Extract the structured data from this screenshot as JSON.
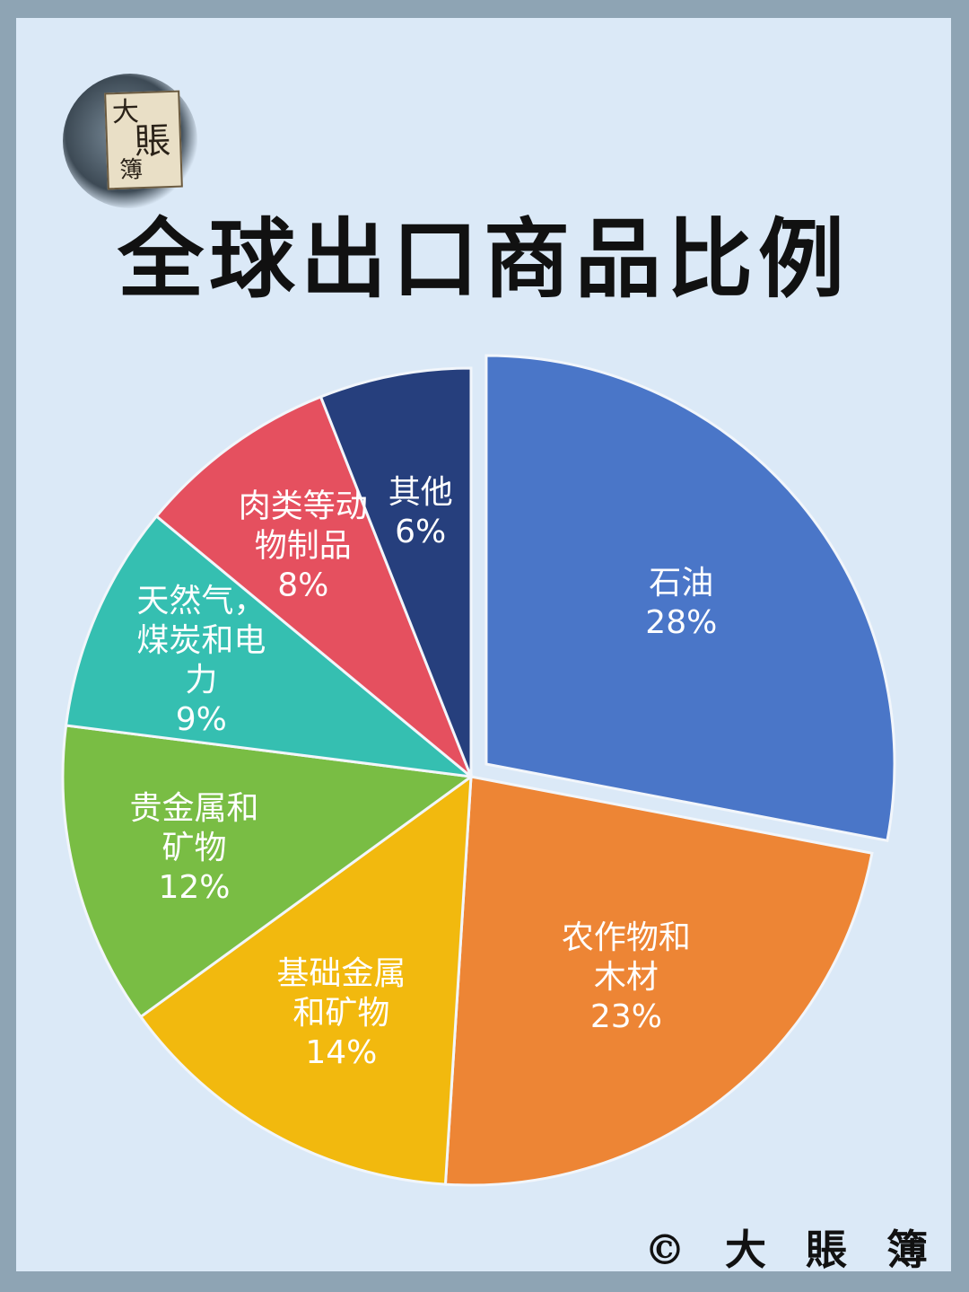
{
  "logo": {
    "chars": [
      "大",
      "賬",
      "簿"
    ]
  },
  "title": "全球出口商品比例",
  "copyright": "© 大 賬 簿",
  "colors": {
    "background": "#dbe9f7",
    "frame": "#8ea4b4",
    "slice_edge": "#f2f6fb"
  },
  "chart_data": {
    "type": "pie",
    "title": "全球出口商品比例",
    "slices": [
      {
        "label": [
          "石油"
        ],
        "value": 28,
        "value_label": "28%",
        "color": "#4a76c8",
        "exploded": true
      },
      {
        "label": [
          "农作物和",
          "木材"
        ],
        "value": 23,
        "value_label": "23%",
        "color": "#ed8535"
      },
      {
        "label": [
          "基础金属",
          "和矿物"
        ],
        "value": 14,
        "value_label": "14%",
        "color": "#f2b90e"
      },
      {
        "label": [
          "贵金属和",
          "矿物"
        ],
        "value": 12,
        "value_label": "12%",
        "color": "#79bd44"
      },
      {
        "label": [
          "天然气，",
          "煤炭和电",
          "力"
        ],
        "value": 9,
        "value_label": "9%",
        "color": "#35bfb1"
      },
      {
        "label": [
          "肉类等动",
          "物制品"
        ],
        "value": 8,
        "value_label": "8%",
        "color": "#e5505f"
      },
      {
        "label": [
          "其他"
        ],
        "value": 6,
        "value_label": "6%",
        "color": "#263f7d"
      }
    ],
    "start": "12 o'clock",
    "direction": "clockwise",
    "legend": "none"
  }
}
